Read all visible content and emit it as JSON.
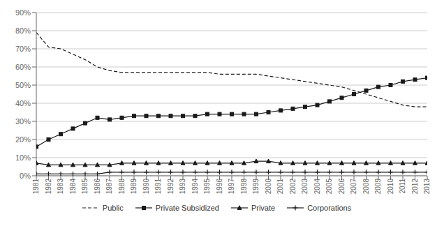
{
  "chart_data": {
    "type": "line",
    "x": [
      1981,
      1982,
      1983,
      1984,
      1985,
      1986,
      1987,
      1988,
      1989,
      1990,
      1991,
      1992,
      1993,
      1994,
      1995,
      1996,
      1997,
      1998,
      1999,
      2000,
      2001,
      2002,
      2003,
      2004,
      2005,
      2006,
      2007,
      2008,
      2009,
      2010,
      2011,
      2012,
      2013
    ],
    "series": [
      {
        "name": "Public",
        "color": "#1a1a1a",
        "line_style": "dashed",
        "marker": "none",
        "values": [
          0.79,
          0.71,
          0.7,
          0.67,
          0.64,
          0.6,
          0.58,
          0.57,
          0.57,
          0.57,
          0.57,
          0.57,
          0.57,
          0.57,
          0.57,
          0.56,
          0.56,
          0.56,
          0.56,
          0.55,
          0.54,
          0.53,
          0.52,
          0.51,
          0.5,
          0.49,
          0.47,
          0.45,
          0.43,
          0.41,
          0.39,
          0.38,
          0.38
        ]
      },
      {
        "name": "Private Subsidized",
        "color": "#1a1a1a",
        "line_style": "solid",
        "marker": "square",
        "values": [
          0.16,
          0.2,
          0.23,
          0.26,
          0.29,
          0.32,
          0.31,
          0.32,
          0.33,
          0.33,
          0.33,
          0.33,
          0.33,
          0.33,
          0.34,
          0.34,
          0.34,
          0.34,
          0.34,
          0.35,
          0.36,
          0.37,
          0.38,
          0.39,
          0.41,
          0.43,
          0.45,
          0.47,
          0.49,
          0.5,
          0.52,
          0.53,
          0.54
        ]
      },
      {
        "name": "Private",
        "color": "#1a1a1a",
        "line_style": "solid",
        "marker": "triangle",
        "values": [
          0.07,
          0.06,
          0.06,
          0.06,
          0.06,
          0.06,
          0.06,
          0.07,
          0.07,
          0.07,
          0.07,
          0.07,
          0.07,
          0.07,
          0.07,
          0.07,
          0.07,
          0.07,
          0.08,
          0.08,
          0.07,
          0.07,
          0.07,
          0.07,
          0.07,
          0.07,
          0.07,
          0.07,
          0.07,
          0.07,
          0.07,
          0.07,
          0.07
        ]
      },
      {
        "name": "Corporations",
        "color": "#1a1a1a",
        "line_style": "solid",
        "marker": "plus",
        "values": [
          0.01,
          0.01,
          0.01,
          0.01,
          0.01,
          0.01,
          0.02,
          0.02,
          0.02,
          0.02,
          0.02,
          0.02,
          0.02,
          0.02,
          0.02,
          0.02,
          0.02,
          0.02,
          0.02,
          0.02,
          0.02,
          0.02,
          0.02,
          0.02,
          0.02,
          0.02,
          0.02,
          0.02,
          0.02,
          0.02,
          0.02,
          0.02,
          0.02
        ]
      }
    ],
    "xlim": [
      1981,
      2013
    ],
    "xticks": [
      1981,
      1982,
      1983,
      1984,
      1985,
      1986,
      1987,
      1988,
      1989,
      1990,
      1991,
      1992,
      1993,
      1994,
      1995,
      1996,
      1997,
      1998,
      1999,
      2000,
      2001,
      2002,
      2003,
      2004,
      2005,
      2006,
      2007,
      2008,
      2009,
      2010,
      2011,
      2012,
      2013
    ],
    "ylim": [
      0.0,
      0.9
    ],
    "yticks": [
      {
        "value": 0.0,
        "label": "0%"
      },
      {
        "value": 0.1,
        "label": "10%"
      },
      {
        "value": 0.2,
        "label": "20%"
      },
      {
        "value": 0.3,
        "label": "30%"
      },
      {
        "value": 0.4,
        "label": "40%"
      },
      {
        "value": 0.5,
        "label": "50%"
      },
      {
        "value": 0.6,
        "label": "60%"
      },
      {
        "value": 0.7,
        "label": "70%"
      },
      {
        "value": 0.8,
        "label": "80%"
      },
      {
        "value": 0.9,
        "label": "90%"
      }
    ],
    "grid": true,
    "legend": "bottom"
  }
}
